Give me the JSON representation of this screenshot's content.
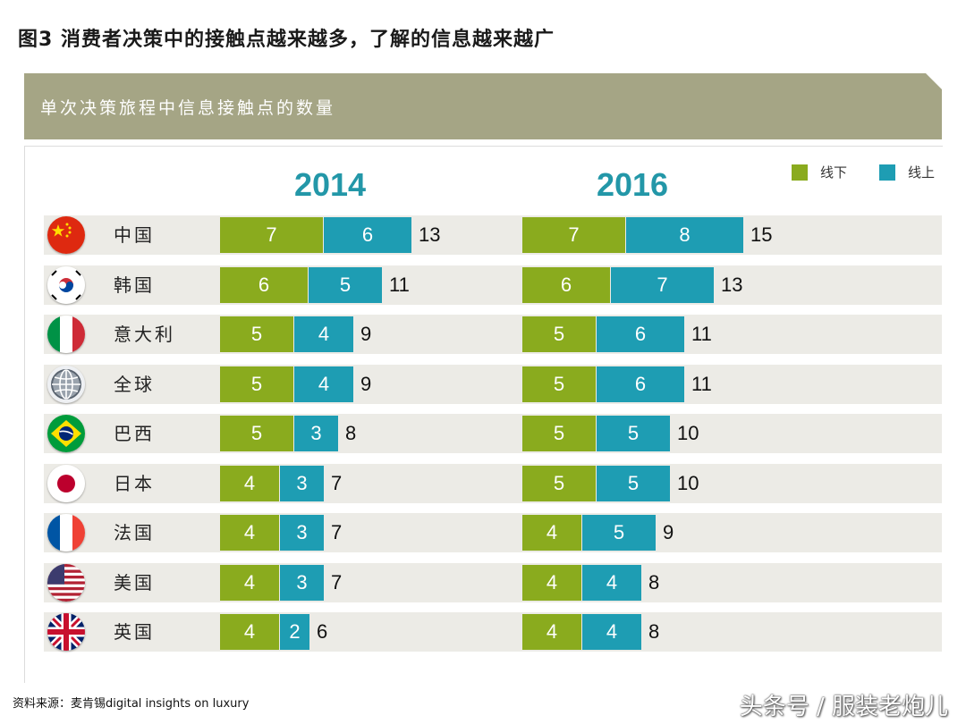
{
  "title": "图3 消费者决策中的接触点越来越多，了解的信息越来越广",
  "banner": "单次决策旅程中信息接触点的数量",
  "legend": [
    {
      "label": "线下",
      "color": "#8aab1e"
    },
    {
      "label": "线上",
      "color": "#1e9db3"
    }
  ],
  "source": "资料来源：麦肯锡digital insights on luxury",
  "watermark": "头条号 / 服装老炮儿",
  "chart_data": {
    "type": "bar",
    "orientation": "horizontal",
    "stacked": true,
    "title": "单次决策旅程中信息接触点的数量",
    "panels": [
      {
        "year": "2014",
        "series": [
          {
            "name": "线下",
            "values": [
              7,
              6,
              5,
              5,
              5,
              4,
              4,
              4,
              4
            ]
          },
          {
            "name": "线上",
            "values": [
              6,
              5,
              4,
              4,
              3,
              3,
              3,
              3,
              2
            ]
          }
        ],
        "totals": [
          13,
          11,
          9,
          9,
          8,
          7,
          7,
          7,
          6
        ]
      },
      {
        "year": "2016",
        "series": [
          {
            "name": "线下",
            "values": [
              7,
              6,
              5,
              5,
              5,
              5,
              4,
              4,
              4
            ]
          },
          {
            "name": "线上",
            "values": [
              8,
              7,
              6,
              6,
              5,
              5,
              5,
              4,
              4
            ]
          }
        ],
        "totals": [
          15,
          13,
          11,
          11,
          10,
          10,
          9,
          8,
          8
        ]
      }
    ],
    "categories": [
      "中国",
      "韩国",
      "意大利",
      "全球",
      "巴西",
      "日本",
      "法国",
      "美国",
      "英国"
    ],
    "flags": [
      "china-flag-icon",
      "korea-flag-icon",
      "italy-flag-icon",
      "globe-icon",
      "brazil-flag-icon",
      "japan-flag-icon",
      "france-flag-icon",
      "usa-flag-icon",
      "uk-flag-icon"
    ],
    "colors": {
      "offline": "#8aab1e",
      "online": "#1e9db3",
      "year": "#2397a8"
    }
  }
}
